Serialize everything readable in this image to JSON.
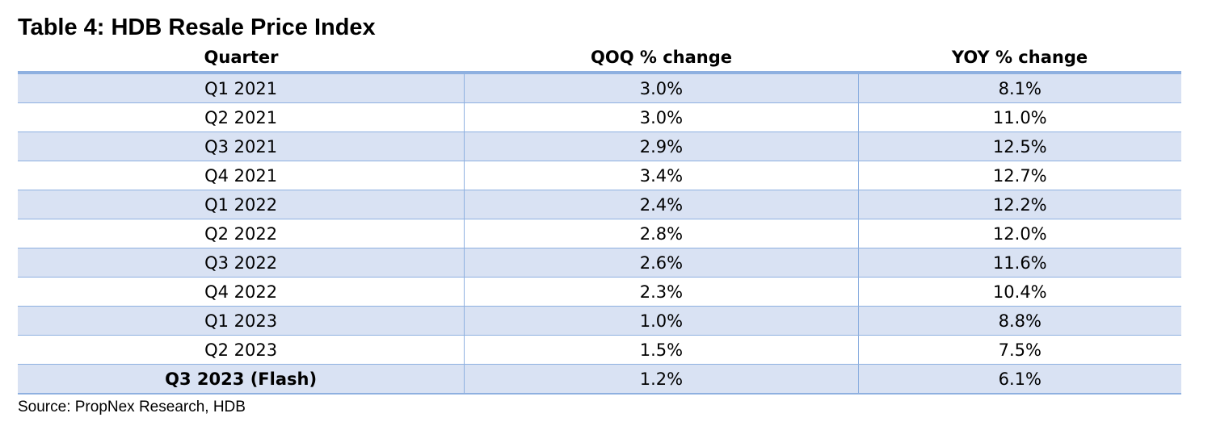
{
  "title": "Table 4: HDB Resale Price Index",
  "columns": [
    "Quarter",
    "QOQ % change",
    "YOY % change"
  ],
  "rows": [
    {
      "quarter": "Q1 2021",
      "qoq": "3.0%",
      "yoy": "8.1%"
    },
    {
      "quarter": "Q2 2021",
      "qoq": "3.0%",
      "yoy": "11.0%"
    },
    {
      "quarter": "Q3 2021",
      "qoq": "2.9%",
      "yoy": "12.5%"
    },
    {
      "quarter": "Q4 2021",
      "qoq": "3.4%",
      "yoy": "12.7%"
    },
    {
      "quarter": "Q1 2022",
      "qoq": "2.4%",
      "yoy": "12.2%"
    },
    {
      "quarter": "Q2 2022",
      "qoq": "2.8%",
      "yoy": "12.0%"
    },
    {
      "quarter": "Q3 2022",
      "qoq": "2.6%",
      "yoy": "11.6%"
    },
    {
      "quarter": "Q4 2022",
      "qoq": "2.3%",
      "yoy": "10.4%"
    },
    {
      "quarter": "Q1 2023",
      "qoq": "1.0%",
      "yoy": "8.8%"
    },
    {
      "quarter": "Q2 2023",
      "qoq": "1.5%",
      "yoy": "7.5%"
    },
    {
      "quarter": "Q3 2023 (Flash)",
      "qoq": "1.2%",
      "yoy": "6.1%"
    }
  ],
  "source": "Source: PropNex Research, HDB",
  "colors": {
    "row_shade": "#d9e2f3",
    "border": "#8eb0e0"
  }
}
